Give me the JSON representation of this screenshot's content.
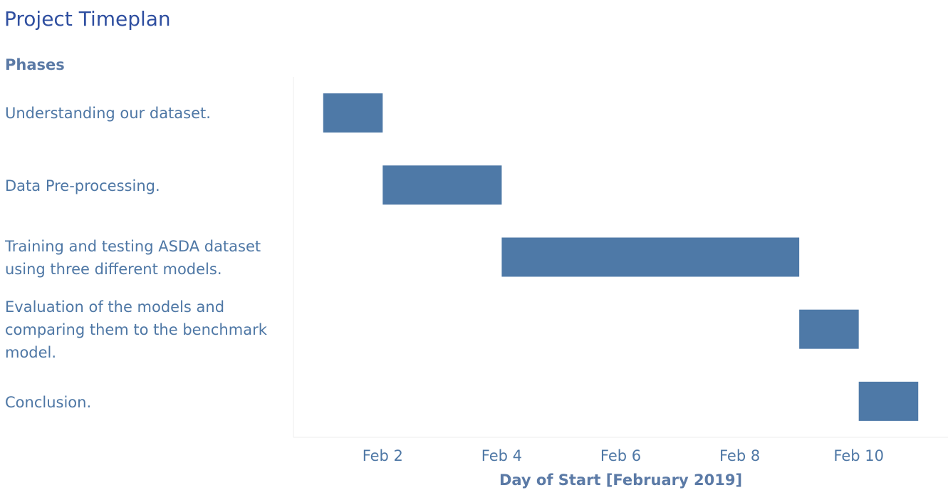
{
  "title": "Project Timeplan",
  "phases_header": "Phases",
  "chart_data": {
    "type": "gantt",
    "title": "Project Timeplan",
    "ylabel": "Phases",
    "xlabel": "Day of Start [February 2019]",
    "x_ticks": [
      "Feb 2",
      "Feb 4",
      "Feb 6",
      "Feb 8",
      "Feb 10"
    ],
    "x_tick_values": [
      2,
      4,
      6,
      8,
      10
    ],
    "x_range": [
      0.5,
      11.5
    ],
    "bar_color": "#4e79a7",
    "tasks": [
      {
        "label": "Understanding our dataset.",
        "start": 1,
        "end": 2
      },
      {
        "label": "Data Pre-processing.",
        "start": 2,
        "end": 4
      },
      {
        "label": "Training and testing ASDA dataset using three different models.",
        "start": 4,
        "end": 9
      },
      {
        "label": "Evaluation of the models and comparing them to the benchmark model.",
        "start": 9,
        "end": 10
      },
      {
        "label": "Conclusion.",
        "start": 10,
        "end": 11
      }
    ]
  }
}
